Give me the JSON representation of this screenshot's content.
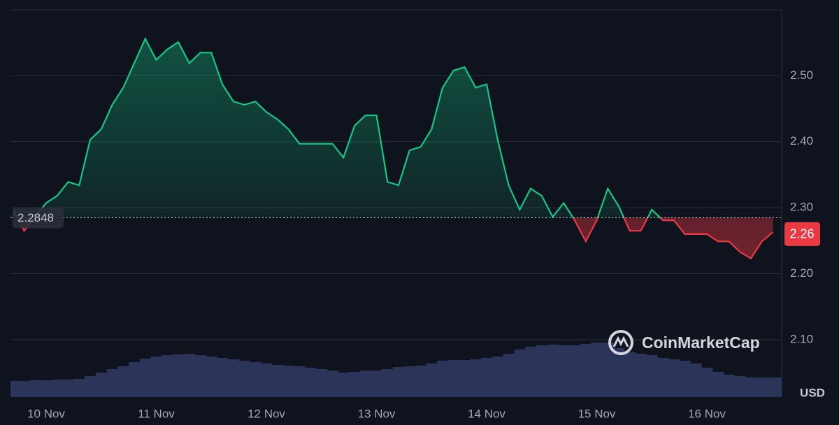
{
  "chart_data": {
    "type": "line",
    "watermark": "CoinMarketCap",
    "currency": "USD",
    "baseline": 2.2848,
    "current_price": 2.26,
    "categories": [
      null,
      null,
      null,
      "10 Nov",
      null,
      null,
      null,
      null,
      null,
      null,
      null,
      null,
      null,
      "11 Nov",
      null,
      null,
      null,
      null,
      null,
      null,
      null,
      null,
      null,
      "12 Nov",
      null,
      null,
      null,
      null,
      null,
      null,
      null,
      null,
      null,
      "13 Nov",
      null,
      null,
      null,
      null,
      null,
      null,
      null,
      null,
      null,
      "14 Nov",
      null,
      null,
      null,
      null,
      null,
      null,
      null,
      null,
      null,
      "15 Nov",
      null,
      null,
      null,
      null,
      null,
      null,
      null,
      null,
      null,
      "16 Nov",
      null,
      null,
      null,
      null,
      null,
      null
    ],
    "series": [
      {
        "values": [
          2.297,
          2.265,
          2.286,
          2.307,
          2.318,
          2.339,
          2.334,
          2.403,
          2.419,
          2.456,
          2.482,
          2.519,
          2.556,
          2.524,
          2.54,
          2.551,
          2.519,
          2.535,
          2.535,
          2.487,
          2.461,
          2.456,
          2.461,
          2.445,
          2.434,
          2.419,
          2.397,
          2.397,
          2.397,
          2.397,
          2.376,
          2.424,
          2.44,
          2.44,
          2.339,
          2.334,
          2.387,
          2.392,
          2.419,
          2.482,
          2.508,
          2.513,
          2.482,
          2.487,
          2.403,
          2.334,
          2.297,
          2.329,
          2.318,
          2.286,
          2.307,
          2.281,
          2.249,
          2.281,
          2.329,
          2.302,
          2.265,
          2.265,
          2.297,
          2.281,
          2.281,
          2.26,
          2.26,
          2.26,
          2.249,
          2.249,
          2.233,
          2.223,
          2.249,
          2.263
        ],
        "color_up": "#16c784",
        "color_down": "#ea3943"
      }
    ],
    "volume": {
      "color": "#2d3459",
      "values": [
        23,
        23,
        24,
        24,
        25,
        25,
        26,
        30,
        35,
        40,
        44,
        50,
        55,
        58,
        60,
        61,
        62,
        60,
        58,
        56,
        54,
        52,
        50,
        48,
        46,
        45,
        44,
        42,
        40,
        38,
        35,
        36,
        38,
        38,
        40,
        43,
        44,
        45,
        48,
        52,
        53,
        53,
        54,
        56,
        58,
        62,
        68,
        72,
        74,
        75,
        74,
        74,
        76,
        78,
        78,
        70,
        64,
        62,
        60,
        56,
        54,
        52,
        48,
        42,
        36,
        32,
        30,
        28,
        28,
        28
      ]
    },
    "ylim": [
      2.013,
      2.6
    ],
    "yticks": [
      {
        "value": 2.5,
        "label": "2.50"
      },
      {
        "value": 2.4,
        "label": "2.40"
      },
      {
        "value": 2.3,
        "label": "2.30"
      },
      {
        "value": 2.2,
        "label": "2.20"
      },
      {
        "value": 2.1,
        "label": "2.10"
      }
    ],
    "grid": true
  }
}
